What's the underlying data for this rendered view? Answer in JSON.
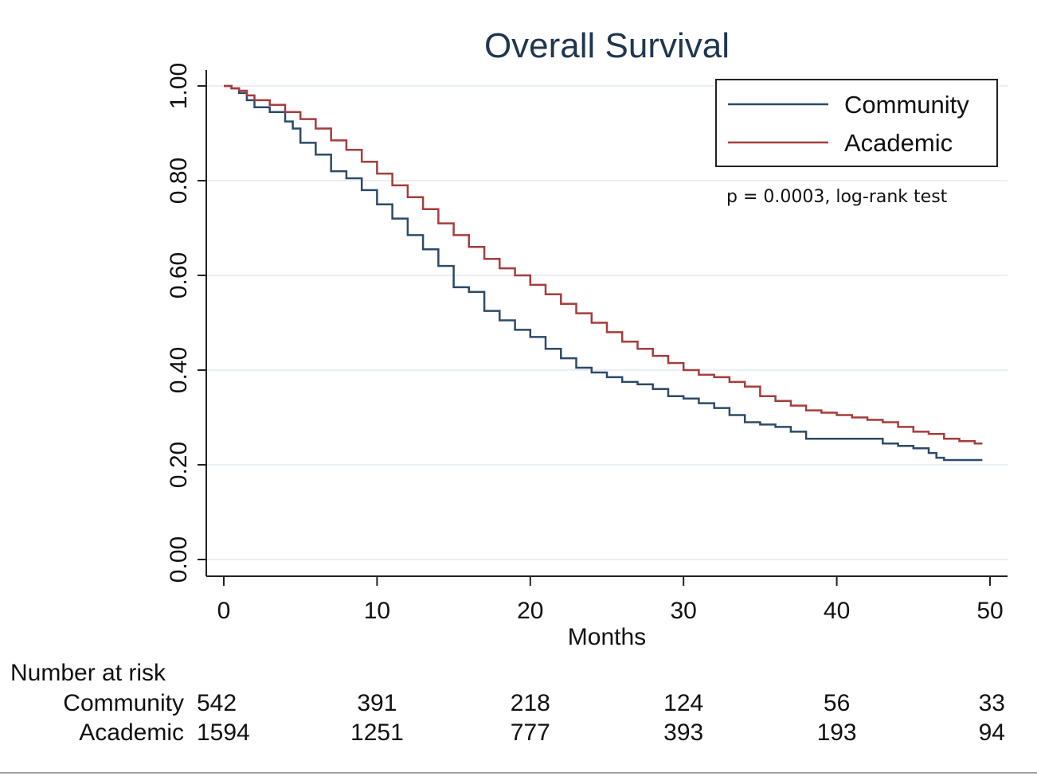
{
  "chart_data": {
    "type": "line",
    "title": "Overall Survival",
    "xlabel": "Months",
    "ylabel": "",
    "xlim": [
      0,
      50
    ],
    "ylim": [
      0,
      1
    ],
    "xticks": [
      "0",
      "10",
      "20",
      "30",
      "40",
      "50"
    ],
    "yticks": [
      "0.00",
      "0.20",
      "0.40",
      "0.60",
      "0.80",
      "1.00"
    ],
    "grid": "horizontal",
    "legend_position": "top-right",
    "annotation": "p = 0.0003, log-rank test",
    "series": [
      {
        "name": "Community",
        "color": "#2d4a68",
        "x": [
          0,
          0.5,
          1,
          1.5,
          2,
          3,
          4,
          4.5,
          5,
          6,
          7,
          8,
          9,
          10,
          11,
          12,
          13,
          14,
          15,
          16,
          17,
          18,
          19,
          20,
          21,
          22,
          23,
          24,
          25,
          26,
          27,
          28,
          29,
          30,
          31,
          32,
          33,
          34,
          35,
          36,
          37,
          38,
          39,
          40,
          41,
          42,
          43,
          44,
          45,
          46,
          46.5,
          47,
          48,
          49,
          49.5
        ],
        "y": [
          1.0,
          0.995,
          0.985,
          0.97,
          0.955,
          0.945,
          0.925,
          0.91,
          0.88,
          0.855,
          0.82,
          0.805,
          0.78,
          0.75,
          0.72,
          0.685,
          0.655,
          0.62,
          0.575,
          0.565,
          0.525,
          0.505,
          0.485,
          0.47,
          0.445,
          0.425,
          0.405,
          0.395,
          0.385,
          0.375,
          0.37,
          0.36,
          0.345,
          0.34,
          0.33,
          0.32,
          0.305,
          0.29,
          0.285,
          0.28,
          0.27,
          0.255,
          0.255,
          0.255,
          0.255,
          0.255,
          0.245,
          0.24,
          0.235,
          0.225,
          0.215,
          0.21,
          0.21,
          0.21,
          0.21
        ]
      },
      {
        "name": "Academic",
        "color": "#a63c3c",
        "x": [
          0,
          0.5,
          1,
          1.5,
          2,
          3,
          4,
          5,
          6,
          7,
          8,
          9,
          10,
          11,
          12,
          13,
          14,
          15,
          16,
          17,
          18,
          19,
          20,
          21,
          22,
          23,
          24,
          25,
          26,
          27,
          28,
          29,
          30,
          31,
          32,
          33,
          34,
          35,
          36,
          37,
          38,
          39,
          40,
          41,
          42,
          43,
          44,
          45,
          46,
          47,
          48,
          49,
          49.5
        ],
        "y": [
          1.0,
          0.995,
          0.99,
          0.98,
          0.97,
          0.96,
          0.945,
          0.93,
          0.91,
          0.885,
          0.865,
          0.84,
          0.815,
          0.79,
          0.765,
          0.74,
          0.71,
          0.685,
          0.66,
          0.635,
          0.615,
          0.6,
          0.58,
          0.56,
          0.54,
          0.52,
          0.5,
          0.48,
          0.46,
          0.445,
          0.43,
          0.415,
          0.4,
          0.39,
          0.385,
          0.375,
          0.365,
          0.345,
          0.335,
          0.325,
          0.315,
          0.31,
          0.305,
          0.3,
          0.295,
          0.29,
          0.28,
          0.27,
          0.265,
          0.255,
          0.25,
          0.245,
          0.245
        ]
      }
    ],
    "risk_table": {
      "header": "Number at risk",
      "rows": [
        {
          "label": "Community",
          "values": [
            "542",
            "391",
            "218",
            "124",
            "56",
            "33"
          ]
        },
        {
          "label": "Academic",
          "values": [
            "1594",
            "1251",
            "777",
            "393",
            "193",
            "94"
          ]
        }
      ]
    }
  }
}
